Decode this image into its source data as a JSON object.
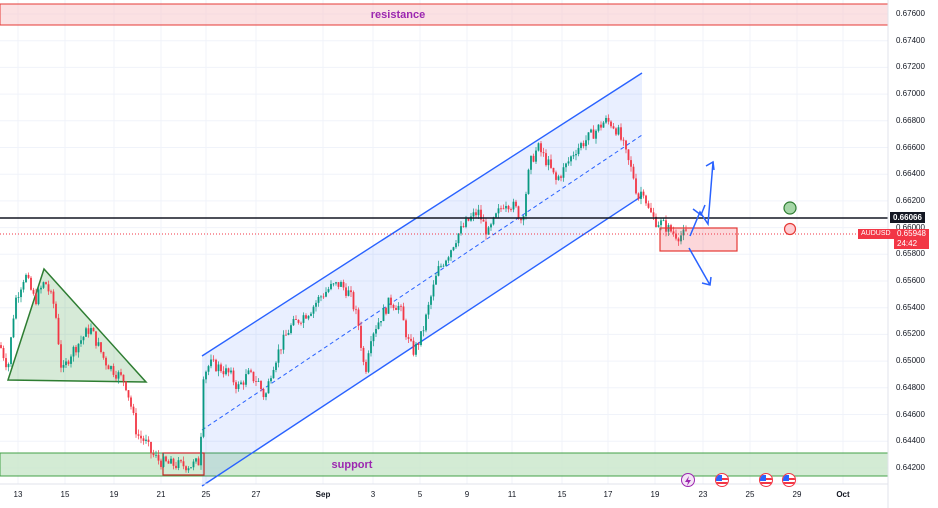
{
  "chart_data": {
    "type": "candlestick",
    "symbol": "AUDUSD",
    "y_ticks": [
      "0.67600",
      "0.67400",
      "0.67200",
      "0.67000",
      "0.66800",
      "0.66600",
      "0.66400",
      "0.66200",
      "0.66000",
      "0.65800",
      "0.65600",
      "0.65400",
      "0.65200",
      "0.65000",
      "0.64800",
      "0.64600",
      "0.64400",
      "0.64200"
    ],
    "x_ticks": [
      "13",
      "15",
      "19",
      "21",
      "25",
      "27",
      "Sep",
      "3",
      "5",
      "9",
      "11",
      "15",
      "17",
      "19",
      "23",
      "25",
      "29",
      "Oct"
    ],
    "ylim": [
      0.6412,
      0.6776
    ],
    "current_price": "0.65948",
    "countdown": "24:42",
    "horizontal_line_price": "0.66066",
    "resistance": {
      "label": "resistance",
      "from": 0.67495,
      "to": 0.67655
    },
    "support": {
      "label": "support",
      "from": 0.64148,
      "to": 0.64325
    },
    "price_path": [
      [
        0,
        0.6512
      ],
      [
        8,
        0.6495
      ],
      [
        15,
        0.6545
      ],
      [
        25,
        0.6565
      ],
      [
        35,
        0.6545
      ],
      [
        45,
        0.656
      ],
      [
        55,
        0.654
      ],
      [
        62,
        0.649
      ],
      [
        70,
        0.6505
      ],
      [
        80,
        0.6515
      ],
      [
        90,
        0.6525
      ],
      [
        98,
        0.6512
      ],
      [
        105,
        0.65
      ],
      [
        115,
        0.6492
      ],
      [
        125,
        0.6485
      ],
      [
        130,
        0.647
      ],
      [
        137,
        0.6445
      ],
      [
        145,
        0.644
      ],
      [
        152,
        0.643
      ],
      [
        160,
        0.6425
      ],
      [
        168,
        0.6423
      ],
      [
        180,
        0.6422
      ],
      [
        192,
        0.6422
      ],
      [
        200,
        0.6425
      ],
      [
        203,
        0.649
      ],
      [
        210,
        0.6498
      ],
      [
        220,
        0.6495
      ],
      [
        230,
        0.649
      ],
      [
        238,
        0.648
      ],
      [
        248,
        0.649
      ],
      [
        258,
        0.6485
      ],
      [
        265,
        0.6472
      ],
      [
        272,
        0.6495
      ],
      [
        280,
        0.651
      ],
      [
        290,
        0.6525
      ],
      [
        300,
        0.6532
      ],
      [
        310,
        0.6538
      ],
      [
        320,
        0.6548
      ],
      [
        330,
        0.6555
      ],
      [
        340,
        0.6558
      ],
      [
        350,
        0.655
      ],
      [
        358,
        0.653
      ],
      [
        365,
        0.649
      ],
      [
        370,
        0.6518
      ],
      [
        380,
        0.6532
      ],
      [
        390,
        0.6545
      ],
      [
        400,
        0.654
      ],
      [
        408,
        0.6515
      ],
      [
        414,
        0.6507
      ],
      [
        422,
        0.652
      ],
      [
        430,
        0.6545
      ],
      [
        438,
        0.6568
      ],
      [
        448,
        0.658
      ],
      [
        458,
        0.6595
      ],
      [
        468,
        0.6605
      ],
      [
        478,
        0.6612
      ],
      [
        488,
        0.6595
      ],
      [
        496,
        0.6608
      ],
      [
        505,
        0.662
      ],
      [
        515,
        0.6615
      ],
      [
        522,
        0.6605
      ],
      [
        530,
        0.6648
      ],
      [
        538,
        0.666
      ],
      [
        548,
        0.6648
      ],
      [
        556,
        0.6635
      ],
      [
        565,
        0.6645
      ],
      [
        575,
        0.6658
      ],
      [
        585,
        0.6665
      ],
      [
        595,
        0.6672
      ],
      [
        605,
        0.668
      ],
      [
        612,
        0.6678
      ],
      [
        618,
        0.6672
      ],
      [
        623,
        0.6662
      ],
      [
        628,
        0.665
      ],
      [
        633,
        0.664
      ],
      [
        638,
        0.6622
      ],
      [
        643,
        0.663
      ],
      [
        648,
        0.6614
      ],
      [
        655,
        0.6605
      ],
      [
        662,
        0.6603
      ],
      [
        670,
        0.6598
      ],
      [
        678,
        0.6594
      ],
      [
        686,
        0.6595
      ]
    ]
  }
}
